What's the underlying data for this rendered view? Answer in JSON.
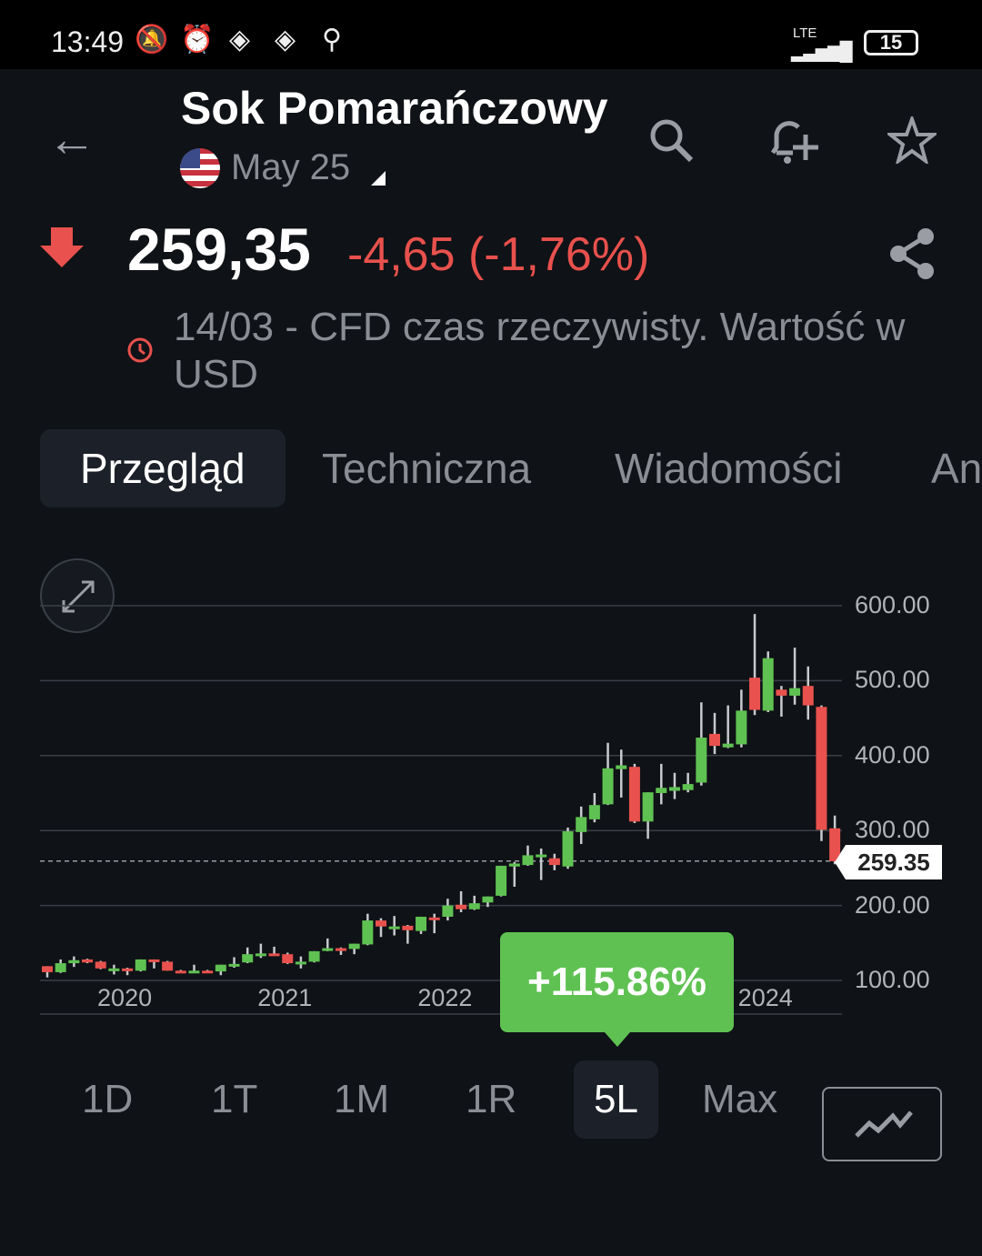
{
  "status_bar": {
    "time": "13:49",
    "network": "LTE",
    "battery": "15"
  },
  "header": {
    "title": "Sok Pomarańczowy",
    "contract": "May 25",
    "icons": [
      "back-arrow-icon",
      "search-icon",
      "add-alert-icon",
      "star-icon",
      "share-icon"
    ]
  },
  "quote": {
    "price": "259,35",
    "change": "-4,65 (-1,76%)",
    "direction": "down",
    "info": "14/03 - CFD czas rzeczywisty. Wartość w USD"
  },
  "tabs": [
    {
      "label": "Przegląd",
      "active": true
    },
    {
      "label": "Techniczna"
    },
    {
      "label": "Wiadomości"
    },
    {
      "label": "Ana"
    }
  ],
  "ranges": [
    {
      "label": "1D"
    },
    {
      "label": "1T"
    },
    {
      "label": "1M"
    },
    {
      "label": "1R"
    },
    {
      "label": "5L",
      "active": true
    },
    {
      "label": "Max"
    }
  ],
  "performance": "+115.86%",
  "colors": {
    "up": "#5fc152",
    "down": "#e8514d",
    "background": "#0f1216"
  },
  "chart_data": {
    "type": "candlestick",
    "current_price_label": "259.35",
    "current_price": 259.35,
    "ylim": [
      100,
      600
    ],
    "y_ticks": [
      "600.00",
      "500.00",
      "400.00",
      "300.00",
      "200.00",
      "100.00"
    ],
    "y_tick_values": [
      600,
      500,
      400,
      300,
      200,
      100
    ],
    "x_ticks": [
      {
        "label": "2020",
        "index": 6
      },
      {
        "label": "2021",
        "index": 18
      },
      {
        "label": "2022",
        "index": 30
      },
      {
        "label": "2024",
        "index": 54
      }
    ],
    "grid": true,
    "ohlc": [
      [
        119,
        119,
        104,
        111
      ],
      [
        111,
        128,
        110,
        123
      ],
      [
        123,
        132,
        118,
        127
      ],
      [
        128,
        129,
        123,
        124
      ],
      [
        125,
        126,
        115,
        116
      ],
      [
        116,
        121,
        108,
        116
      ],
      [
        116,
        117,
        107,
        114
      ],
      [
        113,
        128,
        112,
        128
      ],
      [
        128,
        128,
        116,
        125
      ],
      [
        125,
        126,
        113,
        113
      ],
      [
        113,
        114,
        110,
        111
      ],
      [
        112,
        121,
        111,
        113
      ],
      [
        113,
        114,
        111,
        112
      ],
      [
        112,
        121,
        107,
        121
      ],
      [
        122,
        131,
        117,
        122
      ],
      [
        124,
        144,
        123,
        135
      ],
      [
        134,
        149,
        130,
        136
      ],
      [
        136,
        145,
        133,
        134
      ],
      [
        135,
        137,
        122,
        123
      ],
      [
        123,
        132,
        116,
        125
      ],
      [
        125,
        139,
        124,
        139
      ],
      [
        140,
        156,
        139,
        143
      ],
      [
        143,
        144,
        134,
        142
      ],
      [
        142,
        149,
        135,
        149
      ],
      [
        148,
        189,
        147,
        180
      ],
      [
        180,
        183,
        158,
        172
      ],
      [
        172,
        186,
        160,
        172
      ],
      [
        173,
        174,
        149,
        167
      ],
      [
        166,
        185,
        162,
        185
      ],
      [
        184,
        189,
        163,
        183
      ],
      [
        185,
        209,
        180,
        200
      ],
      [
        201,
        219,
        191,
        195
      ],
      [
        195,
        213,
        194,
        203
      ],
      [
        204,
        212,
        198,
        212
      ],
      [
        213,
        253,
        212,
        253
      ],
      [
        252,
        258,
        225,
        256
      ],
      [
        254,
        280,
        253,
        267
      ],
      [
        268,
        276,
        234,
        268
      ],
      [
        263,
        269,
        247,
        254
      ],
      [
        252,
        304,
        249,
        299
      ],
      [
        298,
        332,
        282,
        318
      ],
      [
        315,
        350,
        311,
        334
      ],
      [
        335,
        417,
        334,
        383
      ],
      [
        382,
        408,
        344,
        387
      ],
      [
        385,
        389,
        310,
        312
      ],
      [
        312,
        351,
        289,
        351
      ],
      [
        350,
        389,
        335,
        357
      ],
      [
        353,
        377,
        342,
        358
      ],
      [
        354,
        377,
        351,
        362
      ],
      [
        364,
        471,
        360,
        424
      ],
      [
        429,
        457,
        402,
        413
      ],
      [
        411,
        467,
        410,
        416
      ],
      [
        415,
        488,
        411,
        460
      ],
      [
        504,
        589,
        454,
        461
      ],
      [
        460,
        539,
        458,
        530
      ],
      [
        488,
        493,
        452,
        480
      ],
      [
        480,
        544,
        468,
        490
      ],
      [
        493,
        519,
        448,
        467
      ],
      [
        465,
        467,
        286,
        301
      ],
      [
        303,
        320,
        255,
        259
      ]
    ]
  }
}
